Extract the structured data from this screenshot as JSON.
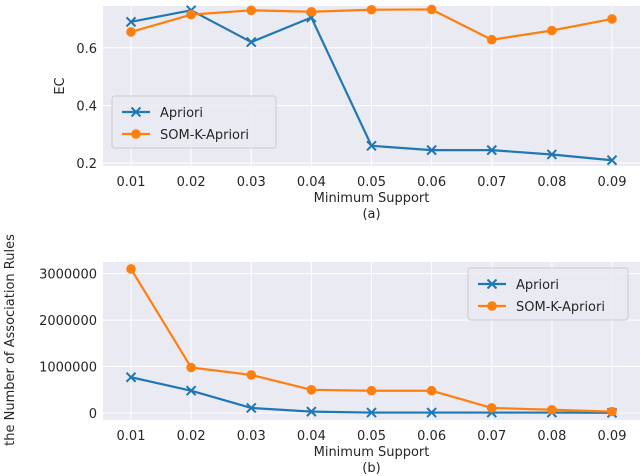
{
  "colors": {
    "background": "#eaeaf2",
    "grid": "#ffffff",
    "series_1": "#1f77b4",
    "series_2": "#ff7f0e",
    "legend_bg": "#eaeaf2",
    "legend_border": "#cccccc",
    "text": "#262626"
  },
  "chart_data": [
    {
      "id": "a",
      "type": "line",
      "caption": "(a)",
      "xlabel": "Minimum Support",
      "ylabel": "EC",
      "categories": [
        "0.01",
        "0.02",
        "0.03",
        "0.04",
        "0.05",
        "0.06",
        "0.07",
        "0.08",
        "0.09"
      ],
      "yticks": [
        "0.2",
        "0.4",
        "0.6"
      ],
      "ytick_values": [
        0.2,
        0.4,
        0.6
      ],
      "ylim": [
        0.19,
        0.745
      ],
      "grid": true,
      "legend_position": "center-left",
      "series": [
        {
          "name": "Apriori",
          "marker": "x",
          "values": [
            0.69,
            0.73,
            0.62,
            0.705,
            0.26,
            0.245,
            0.245,
            0.23,
            0.21
          ]
        },
        {
          "name": "SOM-K-Apriori",
          "marker": "circle",
          "values": [
            0.655,
            0.715,
            0.73,
            0.725,
            0.732,
            0.733,
            0.628,
            0.66,
            0.7
          ]
        }
      ]
    },
    {
      "id": "b",
      "type": "line",
      "caption": "(b)",
      "xlabel": "Minimum Support",
      "ylabel": "the Number of Association Rules",
      "categories": [
        "0.01",
        "0.02",
        "0.03",
        "0.04",
        "0.05",
        "0.06",
        "0.07",
        "0.08",
        "0.09"
      ],
      "yticks": [
        "0",
        "1000000",
        "2000000",
        "3000000"
      ],
      "ytick_values": [
        0,
        1000000,
        2000000,
        3000000
      ],
      "ylim": [
        -150000,
        3250000
      ],
      "grid": true,
      "legend_position": "top-right",
      "series": [
        {
          "name": "Apriori",
          "marker": "x",
          "values": [
            770000,
            480000,
            110000,
            30000,
            10000,
            10000,
            10000,
            10000,
            5000
          ]
        },
        {
          "name": "SOM-K-Apriori",
          "marker": "circle",
          "values": [
            3100000,
            980000,
            820000,
            500000,
            480000,
            480000,
            110000,
            70000,
            30000
          ]
        }
      ]
    }
  ]
}
